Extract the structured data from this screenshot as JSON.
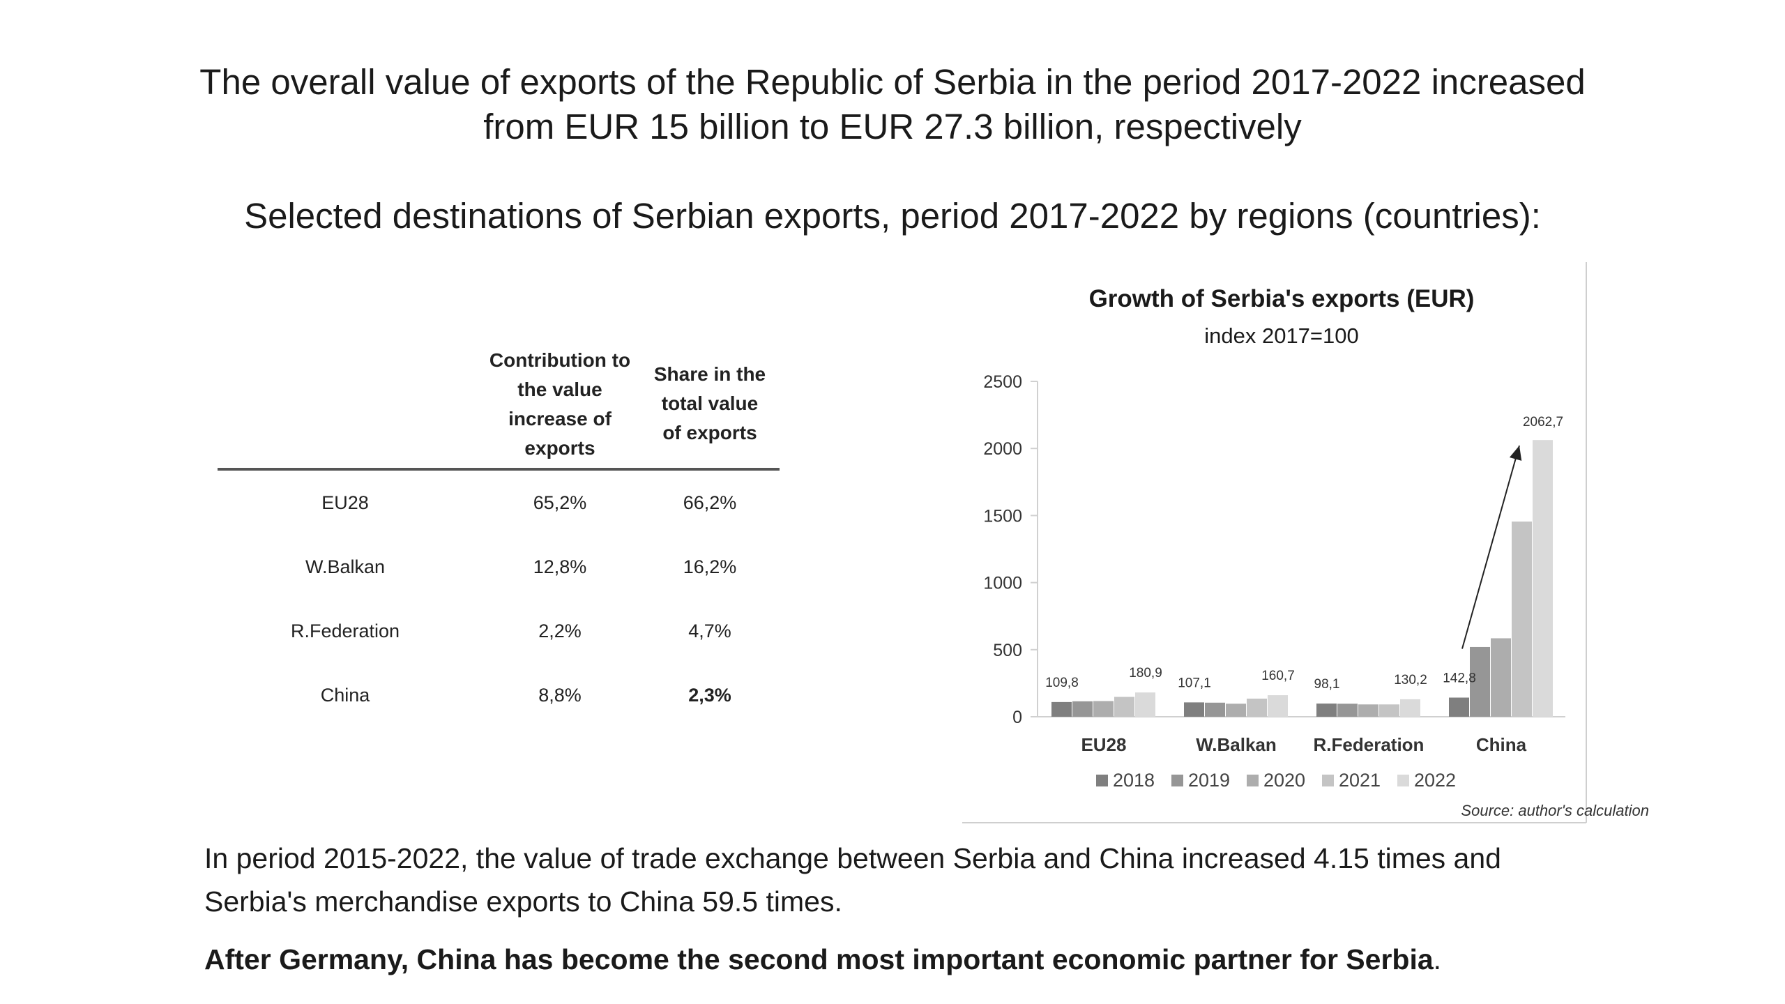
{
  "slide": {
    "title_line1": "The overall value of exports of the Republic of Serbia in the period 2017-2022 increased",
    "title_line2": "from EUR 15 billion to EUR 27.3 billion, respectively",
    "subtitle": "Selected destinations of Serbian exports, period 2017-2022  by regions (countries):",
    "bottom_line1": "In period 2015-2022, the value of trade exchange between Serbia and China increased 4.15 times and",
    "bottom_line2": "Serbia's merchandise exports to China 59.5 times.",
    "bottom_bold": "After Germany, China has become the second most important economic partner for Serbia",
    "bottom_tail": "."
  },
  "table": {
    "headers": {
      "contribution": [
        "Contribution to",
        "the value",
        "increase of",
        "exports"
      ],
      "share": [
        "Share in the",
        "total value",
        "of exports"
      ]
    },
    "rows": [
      {
        "region": "EU28",
        "contribution": "65,2%",
        "share": "66,2%"
      },
      {
        "region": "W.Balkan",
        "contribution": "12,8%",
        "share": "16,2%"
      },
      {
        "region": "R.Federation",
        "contribution": "2,2%",
        "share": "4,7%"
      },
      {
        "region": "China",
        "contribution": "8,8%",
        "share": "2,3%"
      }
    ]
  },
  "chart_data": {
    "type": "bar",
    "title": "Growth of Serbia's exports (EUR)",
    "subtitle": "index 2017=100",
    "categories": [
      "EU28",
      "W.Balkan",
      "R.Federation",
      "China"
    ],
    "series": [
      {
        "name": "2018",
        "values": [
          109.8,
          107.1,
          98.1,
          142.8
        ],
        "color": "#7f7f7f"
      },
      {
        "name": "2019",
        "values": [
          115,
          105,
          97,
          520
        ],
        "color": "#969696"
      },
      {
        "name": "2020",
        "values": [
          117,
          97,
          92,
          585
        ],
        "color": "#adadad"
      },
      {
        "name": "2021",
        "values": [
          148,
          135,
          92,
          1455
        ],
        "color": "#c4c4c4"
      },
      {
        "name": "2022",
        "values": [
          180.9,
          160.7,
          130.2,
          2062.7
        ],
        "color": "#dadada"
      }
    ],
    "data_labels": [
      {
        "category": "EU28",
        "series": "2018",
        "text": "109,8"
      },
      {
        "category": "EU28",
        "series": "2022",
        "text": "180,9"
      },
      {
        "category": "W.Balkan",
        "series": "2018",
        "text": "107,1"
      },
      {
        "category": "W.Balkan",
        "series": "2022",
        "text": "160,7"
      },
      {
        "category": "R.Federation",
        "series": "2018",
        "text": "98,1"
      },
      {
        "category": "R.Federation",
        "series": "2022",
        "text": "130,2"
      },
      {
        "category": "China",
        "series": "2018",
        "text": "142,8"
      },
      {
        "category": "China",
        "series": "2022",
        "text": "2062,7"
      }
    ],
    "ylim": [
      0,
      2500
    ],
    "yticks": [
      0,
      500,
      1000,
      1500,
      2000,
      2500
    ],
    "grid": false,
    "legend": "bottom",
    "source": "Source: author's calculation"
  }
}
